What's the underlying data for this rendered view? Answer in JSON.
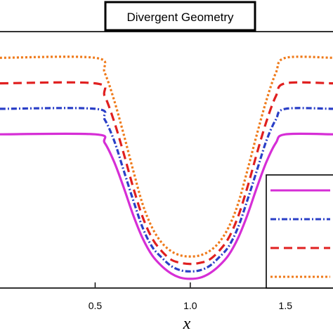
{
  "chart_data": {
    "type": "line",
    "title": "Divergent Geometry",
    "xlabel": "x",
    "ylabel": "",
    "xlim": [
      0.0,
      1.75
    ],
    "ylim": [
      0.0,
      1.2
    ],
    "xticks": [
      0.5,
      1.0,
      1.5
    ],
    "xtick_labels": [
      "0.5",
      "1.0",
      "1.5"
    ],
    "grid": false,
    "legend_position": "lower-right",
    "series": [
      {
        "color": "#d62ed6",
        "dash": "solid",
        "x": [
          0.0,
          0.5,
          0.55,
          0.6,
          0.65,
          0.7,
          0.75,
          0.8,
          0.85,
          0.9,
          0.95,
          1.0,
          1.05,
          1.1,
          1.15,
          1.2,
          1.25,
          1.3,
          1.35,
          1.4,
          1.45,
          1.5,
          1.75
        ],
        "values": [
          0.72,
          0.72,
          0.68,
          0.59,
          0.47,
          0.34,
          0.23,
          0.15,
          0.1,
          0.065,
          0.045,
          0.04,
          0.045,
          0.065,
          0.1,
          0.15,
          0.23,
          0.34,
          0.47,
          0.59,
          0.68,
          0.72,
          0.72
        ]
      },
      {
        "color": "#2a3fc7",
        "dash": "dashdot",
        "x": [
          0.0,
          0.5,
          0.55,
          0.6,
          0.65,
          0.7,
          0.75,
          0.8,
          0.85,
          0.9,
          0.95,
          1.0,
          1.05,
          1.1,
          1.15,
          1.2,
          1.25,
          1.3,
          1.35,
          1.4,
          1.45,
          1.5,
          1.75
        ],
        "values": [
          0.84,
          0.84,
          0.79,
          0.69,
          0.55,
          0.41,
          0.28,
          0.19,
          0.14,
          0.1,
          0.08,
          0.075,
          0.08,
          0.1,
          0.14,
          0.19,
          0.28,
          0.41,
          0.55,
          0.69,
          0.79,
          0.84,
          0.84
        ]
      },
      {
        "color": "#e02020",
        "dash": "dashed",
        "x": [
          0.0,
          0.5,
          0.55,
          0.6,
          0.65,
          0.7,
          0.75,
          0.8,
          0.85,
          0.9,
          0.95,
          1.0,
          1.05,
          1.1,
          1.15,
          1.2,
          1.25,
          1.3,
          1.35,
          1.4,
          1.45,
          1.5,
          1.75
        ],
        "values": [
          0.96,
          0.96,
          0.9,
          0.78,
          0.63,
          0.47,
          0.33,
          0.23,
          0.17,
          0.13,
          0.115,
          0.11,
          0.115,
          0.13,
          0.17,
          0.23,
          0.33,
          0.47,
          0.63,
          0.78,
          0.9,
          0.96,
          0.96
        ]
      },
      {
        "color": "#ef7a1a",
        "dash": "dotted",
        "x": [
          0.0,
          0.5,
          0.55,
          0.6,
          0.65,
          0.7,
          0.75,
          0.8,
          0.85,
          0.9,
          0.95,
          1.0,
          1.05,
          1.1,
          1.15,
          1.2,
          1.25,
          1.3,
          1.35,
          1.4,
          1.45,
          1.5,
          1.75
        ],
        "values": [
          1.08,
          1.08,
          1.01,
          0.88,
          0.72,
          0.55,
          0.39,
          0.28,
          0.21,
          0.17,
          0.15,
          0.145,
          0.15,
          0.17,
          0.21,
          0.28,
          0.39,
          0.55,
          0.72,
          0.88,
          1.01,
          1.08,
          1.08
        ]
      }
    ]
  }
}
